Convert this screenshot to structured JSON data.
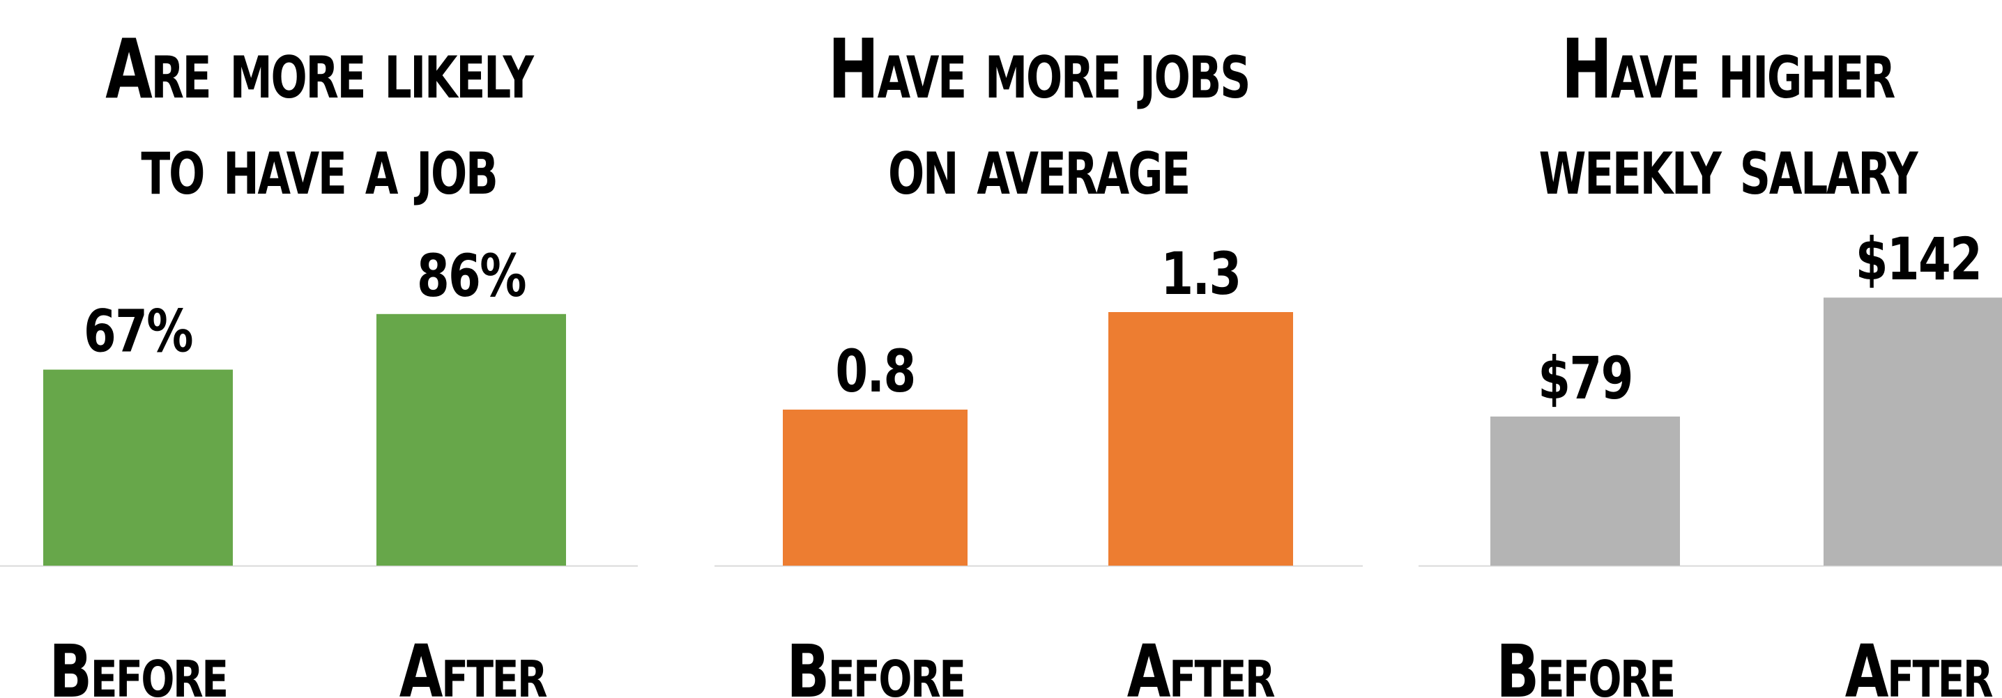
{
  "chart_data": [
    {
      "type": "bar",
      "title_lines": [
        "Are more likely",
        "to have a job"
      ],
      "categories": [
        "Before",
        "After"
      ],
      "values": [
        67,
        86
      ],
      "value_labels": [
        "67%",
        "86%"
      ],
      "ylim": [
        0,
        100
      ],
      "color": "#67a74a",
      "grid": false
    },
    {
      "type": "bar",
      "title_lines": [
        "Have more jobs",
        "on average"
      ],
      "categories": [
        "Before",
        "After"
      ],
      "values": [
        0.8,
        1.3
      ],
      "value_labels": [
        "0.8",
        "1.3"
      ],
      "ylim": [
        0,
        1.5
      ],
      "color": "#ed7d31",
      "grid": false
    },
    {
      "type": "bar",
      "title_lines": [
        "Have higher",
        "weekly salary"
      ],
      "categories": [
        "Before",
        "After"
      ],
      "values": [
        79,
        142
      ],
      "value_labels": [
        "$79",
        "$142"
      ],
      "ylim": [
        0,
        155
      ],
      "color": "#b4b4b4",
      "grid": false
    }
  ]
}
